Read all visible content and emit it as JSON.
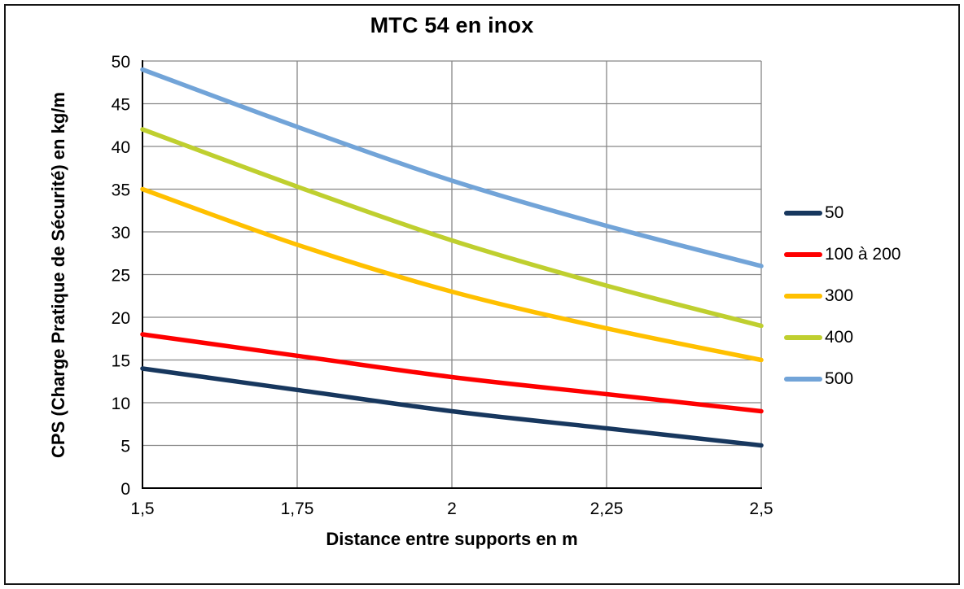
{
  "chart_data": {
    "type": "line",
    "title": "MTC 54 en inox",
    "xlabel": "Distance entre supports en m",
    "ylabel": "CPS (Charge Pratique de Sécurité) en kg/m",
    "x": [
      1.5,
      1.75,
      2,
      2.25,
      2.5
    ],
    "x_tick_labels": [
      "1,5",
      "1,75",
      "2",
      "2,25",
      "2,5"
    ],
    "xlim": [
      1.5,
      2.5
    ],
    "ylim": [
      0,
      50
    ],
    "y_ticks": [
      0,
      5,
      10,
      15,
      20,
      25,
      30,
      35,
      40,
      45,
      50
    ],
    "grid": true,
    "legend_position": "right",
    "colors": {
      "grid": "#878787",
      "axis": "#000000"
    },
    "series": [
      {
        "name": "50",
        "color": "#17375E",
        "values": [
          14,
          11.5,
          9,
          7,
          5
        ]
      },
      {
        "name": "100 à 200",
        "color": "#FE0000",
        "values": [
          18,
          15.5,
          13,
          11,
          9
        ]
      },
      {
        "name": "300",
        "color": "#FFC000",
        "values": [
          35,
          28.5,
          23,
          18.7,
          15
        ]
      },
      {
        "name": "400",
        "color": "#BFCF2F",
        "values": [
          42,
          35.3,
          29,
          23.7,
          19
        ]
      },
      {
        "name": "500",
        "color": "#72A4D8",
        "values": [
          49,
          42.3,
          36,
          30.7,
          26
        ]
      }
    ]
  }
}
